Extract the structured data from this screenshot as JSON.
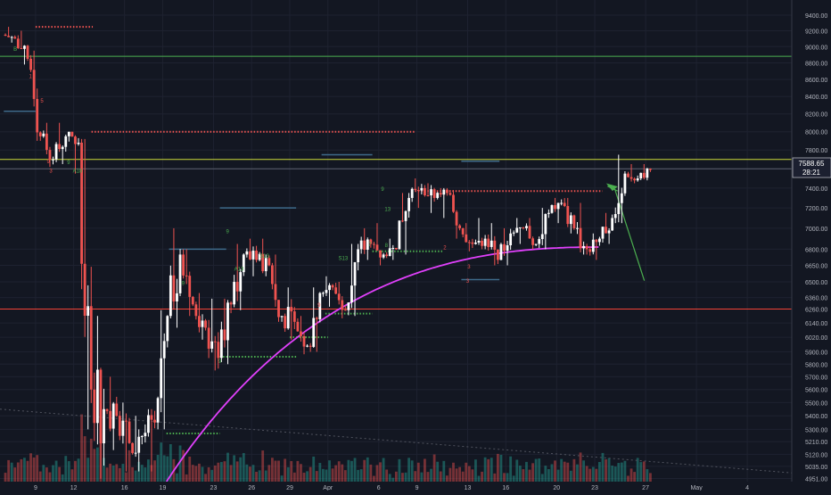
{
  "chart_data": {
    "type": "candlestick",
    "y_axis": {
      "scale": "log",
      "position": "right",
      "ticks": [
        9400,
        9200,
        9000,
        8800,
        8600,
        8400,
        8200,
        8000,
        7800,
        7600,
        7400,
        7200,
        7000,
        6800,
        6650,
        6500,
        6360,
        6260,
        6140,
        6020,
        5900,
        5800,
        5700,
        5600,
        5500,
        5400,
        5300,
        5210,
        5120,
        5035,
        4951
      ],
      "tick_labels": [
        "9400.00",
        "9200.00",
        "9000.00",
        "8800.00",
        "8600.00",
        "8400.00",
        "8200.00",
        "8000.00",
        "7800.00",
        "7600.00",
        "7400.00",
        "7200.00",
        "7000.00",
        "6800.00",
        "6650.00",
        "6500.00",
        "6360.00",
        "6260.00",
        "6140.00",
        "6020.00",
        "5900.00",
        "5800.00",
        "5700.00",
        "5600.00",
        "5500.00",
        "5400.00",
        "5300.00",
        "5210.00",
        "5120.00",
        "5035.00",
        "4951.00"
      ],
      "range": [
        4930,
        9600
      ]
    },
    "x_axis": {
      "labels": [
        "9",
        "12",
        "16",
        "19",
        "23",
        "26",
        "29",
        "Apr",
        "6",
        "9",
        "13",
        "16",
        "20",
        "23",
        "27",
        "May",
        "4"
      ],
      "positions": [
        2,
        5,
        9,
        12,
        16,
        19,
        22,
        25,
        29,
        32,
        36,
        39,
        43,
        46,
        50,
        54,
        58
      ],
      "range": [
        -0.8,
        61.5
      ]
    },
    "last_price": {
      "label": "7588.65",
      "countdown": "28:21",
      "value": 7588.65
    },
    "series": [
      {
        "day": 0,
        "open": 9150,
        "high": 9250,
        "low": 9050,
        "close": 9100
      },
      {
        "day": 1,
        "open": 9100,
        "high": 9200,
        "low": 8780,
        "close": 8850
      },
      {
        "day": 2,
        "open": 8850,
        "high": 8950,
        "low": 7900,
        "close": 7950
      },
      {
        "day": 3,
        "open": 7950,
        "high": 8100,
        "low": 7620,
        "close": 7700
      },
      {
        "day": 4,
        "open": 7700,
        "high": 8100,
        "low": 7650,
        "close": 7950
      },
      {
        "day": 5,
        "open": 7950,
        "high": 8000,
        "low": 7550,
        "close": 7880
      },
      {
        "day": 6,
        "open": 7880,
        "high": 7920,
        "low": 5300,
        "close": 5600
      },
      {
        "day": 7,
        "open": 5600,
        "high": 6200,
        "low": 4950,
        "close": 5450
      },
      {
        "day": 8,
        "open": 5450,
        "high": 5700,
        "low": 5150,
        "close": 5400
      },
      {
        "day": 9,
        "open": 5400,
        "high": 5500,
        "low": 5000,
        "close": 5200
      },
      {
        "day": 10,
        "open": 5200,
        "high": 5400,
        "low": 5000,
        "close": 5250
      },
      {
        "day": 11,
        "open": 5250,
        "high": 5450,
        "low": 5000,
        "close": 5350
      },
      {
        "day": 12,
        "open": 5350,
        "high": 6250,
        "low": 5300,
        "close": 6200
      },
      {
        "day": 13,
        "open": 6200,
        "high": 7000,
        "low": 6100,
        "close": 6750
      },
      {
        "day": 14,
        "open": 6750,
        "high": 6800,
        "low": 6200,
        "close": 6300
      },
      {
        "day": 15,
        "open": 6300,
        "high": 6400,
        "low": 6000,
        "close": 6100
      },
      {
        "day": 16,
        "open": 6100,
        "high": 6350,
        "low": 5750,
        "close": 5850
      },
      {
        "day": 17,
        "open": 5850,
        "high": 6350,
        "low": 5800,
        "close": 6300
      },
      {
        "day": 18,
        "open": 6300,
        "high": 6850,
        "low": 6250,
        "close": 6750
      },
      {
        "day": 19,
        "open": 6750,
        "high": 6900,
        "low": 6550,
        "close": 6700
      },
      {
        "day": 20,
        "open": 6700,
        "high": 6900,
        "low": 6550,
        "close": 6650
      },
      {
        "day": 21,
        "open": 6650,
        "high": 6750,
        "low": 6150,
        "close": 6200
      },
      {
        "day": 22,
        "open": 6200,
        "high": 6450,
        "low": 6000,
        "close": 6150
      },
      {
        "day": 23,
        "open": 6150,
        "high": 6200,
        "low": 5880,
        "close": 5950
      },
      {
        "day": 24,
        "open": 5950,
        "high": 6450,
        "low": 5900,
        "close": 6400
      },
      {
        "day": 25,
        "open": 6400,
        "high": 6550,
        "low": 6280,
        "close": 6450
      },
      {
        "day": 26,
        "open": 6450,
        "high": 6500,
        "low": 6180,
        "close": 6250
      },
      {
        "day": 27,
        "open": 6250,
        "high": 6850,
        "low": 6200,
        "close": 6800
      },
      {
        "day": 28,
        "open": 6800,
        "high": 7000,
        "low": 6700,
        "close": 6850
      },
      {
        "day": 29,
        "open": 6850,
        "high": 7050,
        "low": 6650,
        "close": 6750
      },
      {
        "day": 30,
        "open": 6750,
        "high": 6900,
        "low": 6700,
        "close": 6800
      },
      {
        "day": 31,
        "open": 6800,
        "high": 7350,
        "low": 6750,
        "close": 7300
      },
      {
        "day": 32,
        "open": 7300,
        "high": 7500,
        "low": 7200,
        "close": 7400
      },
      {
        "day": 33,
        "open": 7400,
        "high": 7450,
        "low": 7150,
        "close": 7300
      },
      {
        "day": 34,
        "open": 7300,
        "high": 7400,
        "low": 7100,
        "close": 7350
      },
      {
        "day": 35,
        "open": 7350,
        "high": 7380,
        "low": 6900,
        "close": 7000
      },
      {
        "day": 36,
        "open": 7000,
        "high": 7050,
        "low": 6780,
        "close": 6850
      },
      {
        "day": 37,
        "open": 6850,
        "high": 7100,
        "low": 6800,
        "close": 6900
      },
      {
        "day": 38,
        "open": 6900,
        "high": 7050,
        "low": 6650,
        "close": 6700
      },
      {
        "day": 39,
        "open": 6700,
        "high": 7000,
        "low": 6650,
        "close": 6950
      },
      {
        "day": 40,
        "open": 6950,
        "high": 7100,
        "low": 6850,
        "close": 7000
      },
      {
        "day": 41,
        "open": 7000,
        "high": 7100,
        "low": 6800,
        "close": 6850
      },
      {
        "day": 42,
        "open": 6850,
        "high": 7200,
        "low": 6800,
        "close": 7150
      },
      {
        "day": 43,
        "open": 7150,
        "high": 7300,
        "low": 7050,
        "close": 7250
      },
      {
        "day": 44,
        "open": 7250,
        "high": 7300,
        "low": 6950,
        "close": 7000
      },
      {
        "day": 45,
        "open": 7000,
        "high": 7250,
        "low": 6750,
        "close": 6800
      },
      {
        "day": 46,
        "open": 6800,
        "high": 6950,
        "low": 6700,
        "close": 6900
      },
      {
        "day": 47,
        "open": 6900,
        "high": 7150,
        "low": 6850,
        "close": 7100
      },
      {
        "day": 48,
        "open": 7100,
        "high": 7750,
        "low": 7050,
        "close": 7550
      },
      {
        "day": 49,
        "open": 7550,
        "high": 7650,
        "low": 7450,
        "close": 7500
      },
      {
        "day": 50,
        "open": 7500,
        "high": 7650,
        "low": 7480,
        "close": 7588.65
      }
    ]
  }
}
